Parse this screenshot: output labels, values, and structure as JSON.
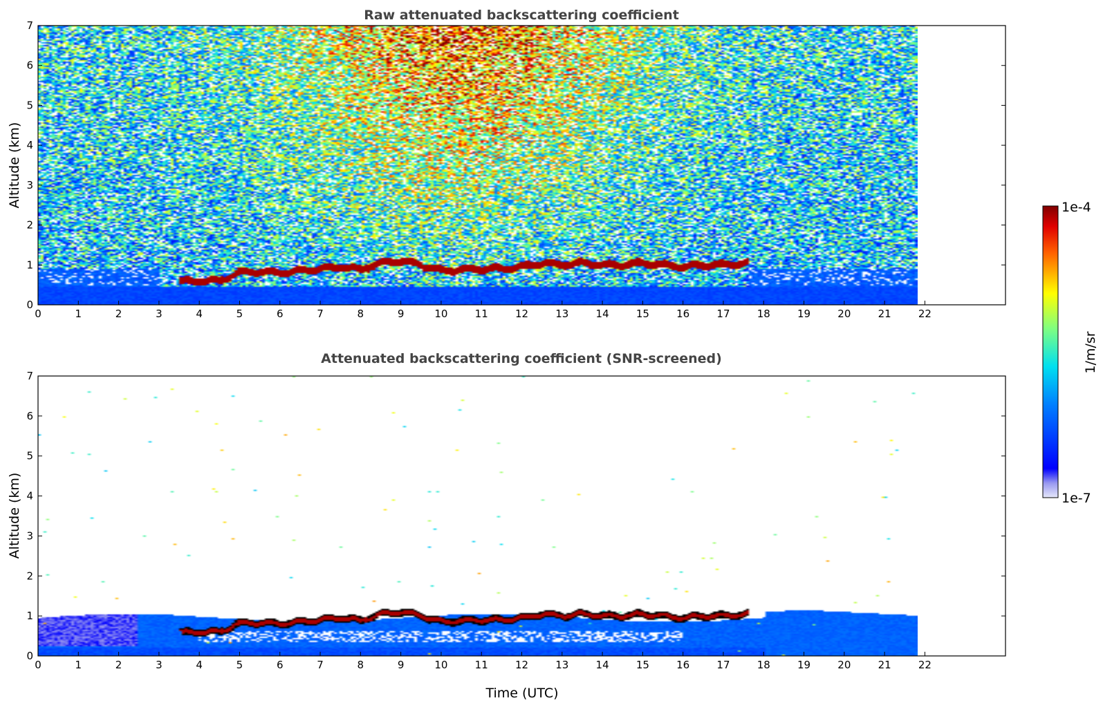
{
  "chart_data": [
    {
      "type": "heatmap",
      "title": "Raw attenuated backscattering coefficient",
      "xlabel": "",
      "ylabel": "Altitude (km)",
      "xlim": [
        0,
        24
      ],
      "ylim": [
        0,
        7
      ],
      "x_ticks": [
        0,
        1,
        2,
        3,
        4,
        5,
        6,
        7,
        8,
        9,
        10,
        11,
        12,
        13,
        14,
        15,
        16,
        17,
        18,
        19,
        20,
        21,
        22
      ],
      "y_ticks": [
        0,
        1,
        2,
        3,
        4,
        5,
        6,
        7
      ],
      "data_extent_x": [
        0,
        21.8
      ],
      "screened": false,
      "cloud_layer": {
        "x": [
          3.5,
          4.0,
          4.5,
          5.0,
          5.5,
          6.0,
          6.5,
          7.0,
          7.5,
          8.0,
          8.5,
          9.0,
          9.5,
          10.0,
          10.5,
          11.0,
          11.5,
          12.0,
          12.5,
          13.0,
          13.5,
          14.0,
          14.5,
          15.0,
          15.5,
          16.0,
          16.5,
          17.0,
          17.6
        ],
        "altitude_km": [
          0.58,
          0.6,
          0.6,
          0.82,
          0.83,
          0.8,
          0.85,
          0.9,
          0.95,
          0.88,
          1.05,
          1.1,
          1.0,
          0.85,
          0.88,
          0.9,
          0.9,
          0.95,
          1.05,
          1.0,
          1.05,
          1.0,
          1.0,
          1.05,
          1.0,
          0.95,
          1.0,
          1.0,
          1.05
        ]
      }
    },
    {
      "type": "heatmap",
      "title": "Attenuated backscattering coefficient (SNR-screened)",
      "xlabel": "Time (UTC)",
      "ylabel": "Altitude (km)",
      "xlim": [
        0,
        24
      ],
      "ylim": [
        0,
        7
      ],
      "x_ticks": [
        0,
        1,
        2,
        3,
        4,
        5,
        6,
        7,
        8,
        9,
        10,
        11,
        12,
        13,
        14,
        15,
        16,
        17,
        18,
        19,
        20,
        21,
        22
      ],
      "y_ticks": [
        0,
        1,
        2,
        3,
        4,
        5,
        6,
        7
      ],
      "data_extent_x": [
        0,
        21.8
      ],
      "screened": true,
      "cloud_layer": {
        "x": [
          3.5,
          4.0,
          4.5,
          5.0,
          5.5,
          6.0,
          6.5,
          7.0,
          7.5,
          8.0,
          8.5,
          9.0,
          9.5,
          10.0,
          10.5,
          11.0,
          11.5,
          12.0,
          12.5,
          13.0,
          13.5,
          14.0,
          14.5,
          15.0,
          15.5,
          16.0,
          16.5,
          17.0,
          17.6
        ],
        "altitude_km": [
          0.58,
          0.6,
          0.6,
          0.82,
          0.83,
          0.8,
          0.85,
          0.9,
          0.95,
          0.88,
          1.05,
          1.1,
          1.0,
          0.85,
          0.88,
          0.9,
          0.9,
          0.95,
          1.05,
          1.0,
          1.05,
          1.0,
          1.0,
          1.05,
          1.0,
          0.95,
          1.0,
          1.0,
          1.05
        ]
      }
    }
  ],
  "colorbar": {
    "label": "1/m/sr",
    "max_label": "1e-4",
    "min_label": "1e-7",
    "scale": "log",
    "colormap": "jet"
  },
  "colors": {
    "title": "#444444",
    "cloud_core": "#8b0000",
    "cloud_outline": "#000000"
  }
}
